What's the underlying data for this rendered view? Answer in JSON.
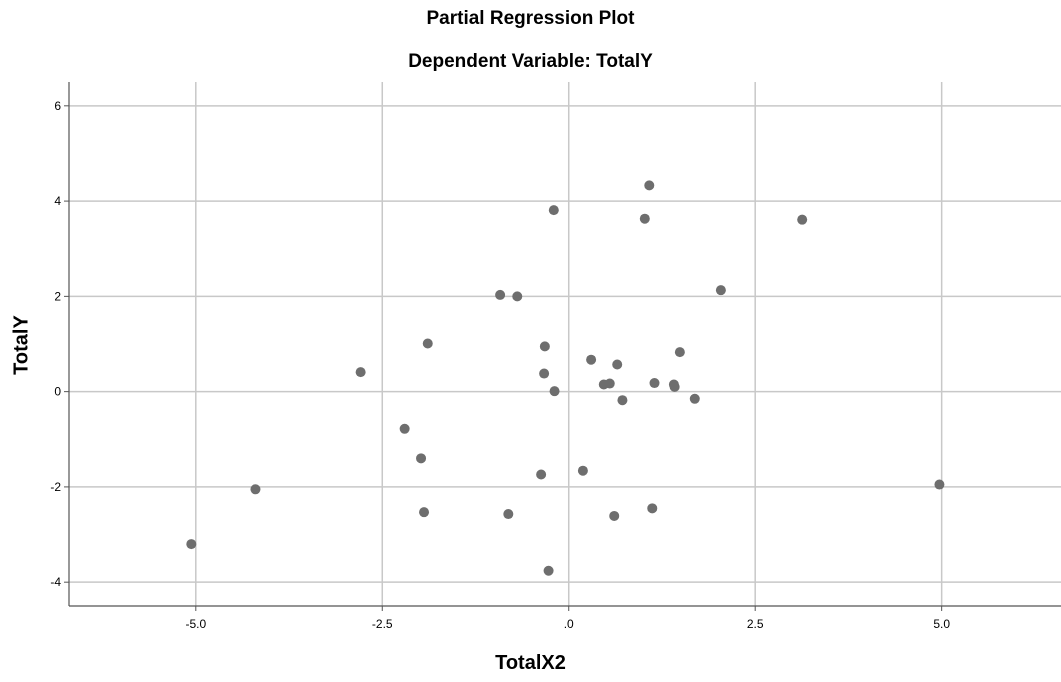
{
  "chart_data": {
    "type": "scatter",
    "title": "Partial Regression Plot",
    "subtitle": "Dependent Variable: TotalY",
    "xlabel": "TotalX2",
    "ylabel": "TotalY",
    "xlim": [
      -6.7,
      6.6
    ],
    "ylim": [
      -4.5,
      6.5
    ],
    "xticks": [
      -5.0,
      -2.5,
      0.0,
      2.5,
      5.0
    ],
    "xtick_labels": [
      "-5.0",
      "-2.5",
      ".0",
      "2.5",
      "5.0"
    ],
    "yticks": [
      -4,
      -2,
      0,
      2,
      4,
      6
    ],
    "ytick_labels": [
      "-4",
      "-2",
      "0",
      "2",
      "4",
      "6"
    ],
    "grid": true,
    "point_color": "#6e6e6e",
    "gridline_color": "#c8c8c8",
    "points": [
      {
        "x": 1.08,
        "y": 4.33
      },
      {
        "x": -0.2,
        "y": 3.81
      },
      {
        "x": 1.02,
        "y": 3.63
      },
      {
        "x": 3.13,
        "y": 3.61
      },
      {
        "x": 2.04,
        "y": 2.13
      },
      {
        "x": -0.92,
        "y": 2.03
      },
      {
        "x": -0.69,
        "y": 2.0
      },
      {
        "x": -1.89,
        "y": 1.01
      },
      {
        "x": -0.32,
        "y": 0.95
      },
      {
        "x": 1.49,
        "y": 0.83
      },
      {
        "x": 0.3,
        "y": 0.67
      },
      {
        "x": 0.65,
        "y": 0.57
      },
      {
        "x": -2.79,
        "y": 0.41
      },
      {
        "x": -0.33,
        "y": 0.38
      },
      {
        "x": 1.15,
        "y": 0.18
      },
      {
        "x": 0.55,
        "y": 0.17
      },
      {
        "x": 0.47,
        "y": 0.15
      },
      {
        "x": 1.41,
        "y": 0.15
      },
      {
        "x": 1.42,
        "y": 0.1
      },
      {
        "x": -0.19,
        "y": 0.01
      },
      {
        "x": 1.69,
        "y": -0.15
      },
      {
        "x": 0.72,
        "y": -0.18
      },
      {
        "x": -2.2,
        "y": -0.78
      },
      {
        "x": -1.98,
        "y": -1.4
      },
      {
        "x": 0.19,
        "y": -1.66
      },
      {
        "x": -0.37,
        "y": -1.74
      },
      {
        "x": 4.97,
        "y": -1.95
      },
      {
        "x": -4.2,
        "y": -2.05
      },
      {
        "x": 1.12,
        "y": -2.45
      },
      {
        "x": -1.94,
        "y": -2.53
      },
      {
        "x": -0.81,
        "y": -2.57
      },
      {
        "x": 0.61,
        "y": -2.61
      },
      {
        "x": -5.06,
        "y": -3.2
      },
      {
        "x": -0.27,
        "y": -3.76
      }
    ]
  }
}
